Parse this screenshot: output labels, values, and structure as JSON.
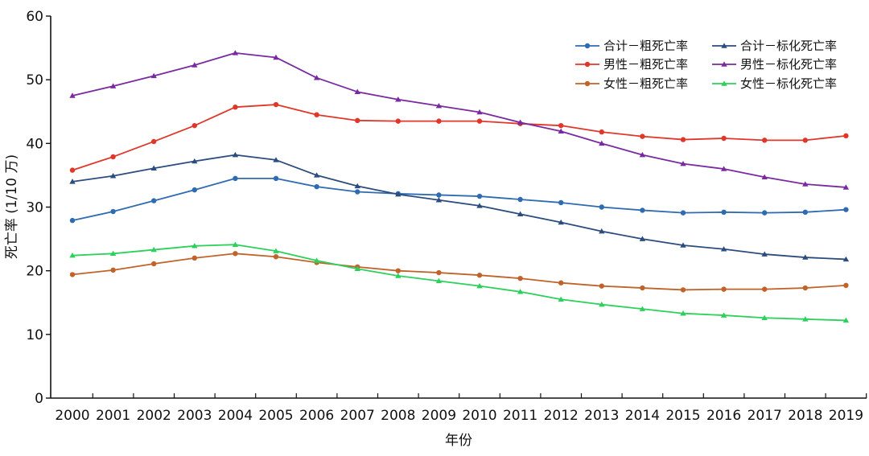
{
  "chart_data": {
    "type": "line",
    "title": "",
    "xlabel": "年份",
    "ylabel": "死亡率 (1/10 万)",
    "categories": [
      "2000",
      "2001",
      "2002",
      "2003",
      "2004",
      "2005",
      "2006",
      "2007",
      "2008",
      "2009",
      "2010",
      "2011",
      "2012",
      "2013",
      "2014",
      "2015",
      "2016",
      "2017",
      "2018",
      "2019"
    ],
    "ylim": [
      0,
      60
    ],
    "yticks": [
      "0",
      "10",
      "20",
      "30",
      "40",
      "50",
      "60"
    ],
    "grid": false,
    "legend_position": "top-right",
    "series": [
      {
        "name": "合计－粗死亡率",
        "color": "#2e6bb0",
        "marker": "circle",
        "values": [
          27.9,
          29.3,
          31.0,
          32.7,
          34.5,
          34.5,
          33.2,
          32.4,
          32.1,
          31.9,
          31.7,
          31.2,
          30.7,
          30.0,
          29.5,
          29.1,
          29.2,
          29.1,
          29.2,
          29.6
        ]
      },
      {
        "name": "合计－标化死亡率",
        "color": "#2b4c7e",
        "marker": "triangle",
        "values": [
          34.0,
          34.9,
          36.1,
          37.2,
          38.2,
          37.4,
          35.0,
          33.3,
          32.0,
          31.1,
          30.2,
          28.9,
          27.6,
          26.2,
          25.0,
          24.0,
          23.4,
          22.6,
          22.1,
          21.8
        ]
      },
      {
        "name": "男性－粗死亡率",
        "color": "#e0372a",
        "marker": "circle",
        "values": [
          35.8,
          37.9,
          40.3,
          42.8,
          45.7,
          46.1,
          44.5,
          43.6,
          43.5,
          43.5,
          43.5,
          43.1,
          42.8,
          41.8,
          41.1,
          40.6,
          40.8,
          40.5,
          40.5,
          41.2
        ]
      },
      {
        "name": "男性－标化死亡率",
        "color": "#7a2aa0",
        "marker": "triangle",
        "values": [
          47.5,
          49.0,
          50.6,
          52.3,
          54.2,
          53.5,
          50.3,
          48.1,
          46.9,
          45.9,
          44.9,
          43.3,
          41.9,
          40.0,
          38.2,
          36.8,
          36.0,
          34.7,
          33.6,
          33.1
        ]
      },
      {
        "name": "女性－粗死亡率",
        "color": "#c0632a",
        "marker": "circle",
        "values": [
          19.4,
          20.1,
          21.1,
          22.0,
          22.7,
          22.2,
          21.3,
          20.6,
          20.0,
          19.7,
          19.3,
          18.8,
          18.1,
          17.6,
          17.3,
          17.0,
          17.1,
          17.1,
          17.3,
          17.7
        ]
      },
      {
        "name": "女性－标化死亡率",
        "color": "#2bd15a",
        "marker": "triangle",
        "values": [
          22.4,
          22.7,
          23.3,
          23.9,
          24.1,
          23.1,
          21.6,
          20.3,
          19.2,
          18.4,
          17.6,
          16.7,
          15.5,
          14.7,
          14.0,
          13.3,
          13.0,
          12.6,
          12.4,
          12.2
        ]
      }
    ]
  }
}
